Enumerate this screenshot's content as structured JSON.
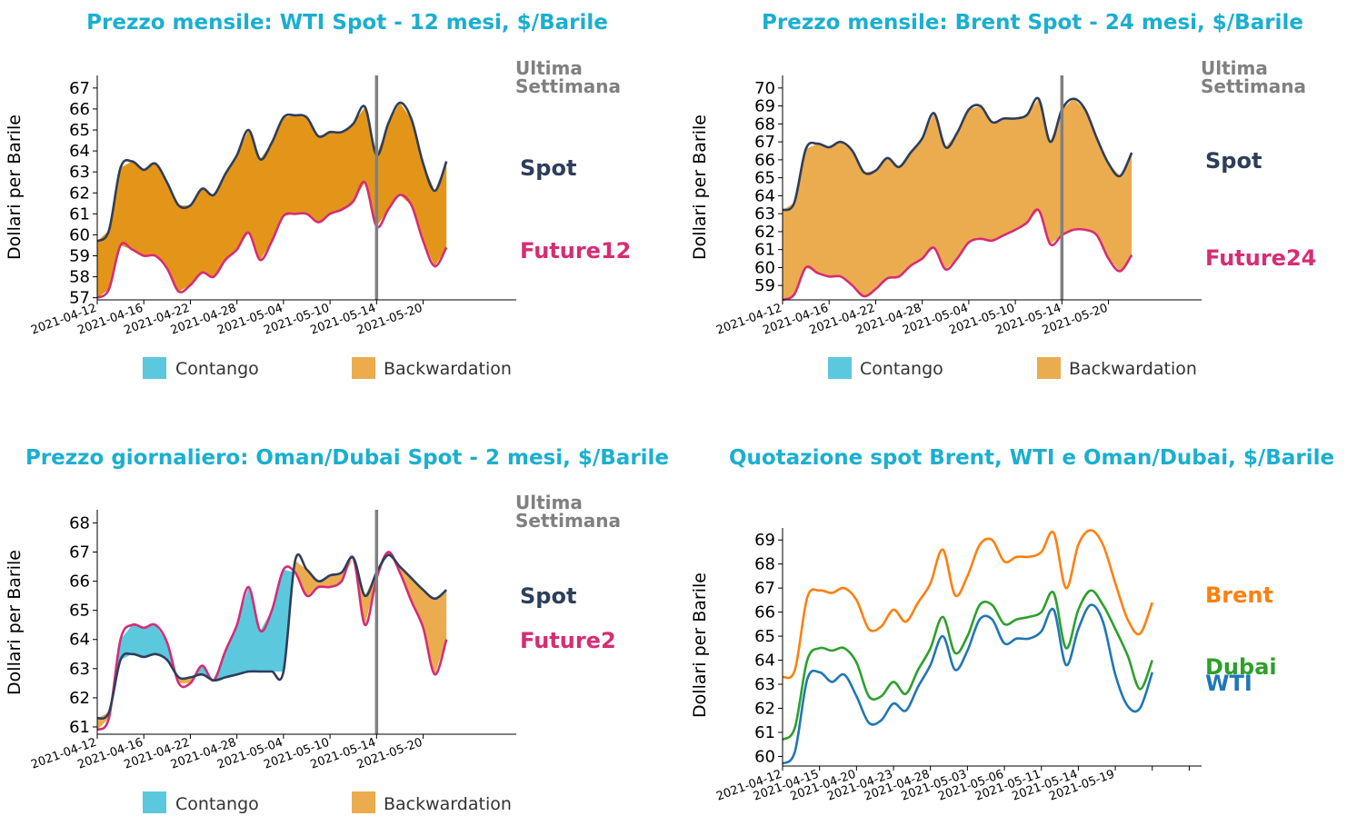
{
  "colors": {
    "title": "#1aafd0",
    "spot": "#2d3e5c",
    "future": "#d62d74",
    "backwardation_dark": "#e3951a",
    "backwardation_light": "#ebac4f",
    "contango": "#5bc8de",
    "marker": "#808080",
    "brent": "#ff7f0e",
    "dubai": "#2ca02c",
    "wti": "#1f77b4"
  },
  "chart_data": [
    {
      "id": "wti",
      "type": "area",
      "title": "Prezzo mensile: WTI Spot - 12 mesi, $/Barile",
      "ylabel": "Dollari per Barile",
      "ylim": [
        56.9,
        67.6
      ],
      "yticks": [
        57,
        58,
        59,
        60,
        61,
        62,
        63,
        64,
        65,
        66,
        67
      ],
      "xlim": [
        0,
        36
      ],
      "xticks": [
        0,
        4,
        8,
        12,
        16,
        20,
        24,
        28
      ],
      "xtick_labels": [
        "2021-04-12",
        "2021-04-16",
        "2021-04-22",
        "2021-04-28",
        "2021-05-04",
        "2021-05-10",
        "2021-05-14",
        "2021-05-20"
      ],
      "marker_x": 24,
      "marker_label_1": "Ultima",
      "marker_label_2": "Settimana",
      "spot_label": "Spot",
      "future_label": "Future12",
      "legend_contango": "Contango",
      "legend_backwardation": "Backwardation",
      "series": [
        {
          "name": "Spot",
          "values": [
            59.7,
            60.2,
            63.2,
            63.5,
            63.1,
            63.4,
            62.5,
            61.4,
            61.4,
            62.2,
            61.9,
            62.9,
            63.8,
            65.0,
            63.6,
            64.4,
            65.6,
            65.7,
            65.6,
            64.7,
            64.9,
            64.9,
            65.3,
            66.1,
            63.8,
            65.3,
            66.3,
            65.5,
            63.4,
            62.1,
            63.5
          ]
        },
        {
          "name": "Future12",
          "values": [
            57.0,
            57.4,
            59.5,
            59.3,
            59.0,
            59.0,
            58.4,
            57.3,
            57.6,
            58.2,
            58.0,
            58.8,
            59.3,
            60.1,
            58.8,
            59.7,
            60.9,
            61.0,
            61.0,
            60.6,
            61.0,
            61.2,
            61.6,
            62.5,
            60.4,
            61.2,
            61.9,
            61.4,
            59.7,
            58.5,
            59.4
          ]
        }
      ]
    },
    {
      "id": "brent",
      "type": "area",
      "title": "Prezzo mensile: Brent Spot - 24 mesi, $/Barile",
      "ylabel": "Dollari per Barile",
      "ylim": [
        58.2,
        70.7
      ],
      "yticks": [
        59,
        60,
        61,
        62,
        63,
        64,
        65,
        66,
        67,
        68,
        69,
        70
      ],
      "xlim": [
        0,
        36
      ],
      "xticks": [
        0,
        4,
        8,
        12,
        16,
        20,
        24,
        28
      ],
      "xtick_labels": [
        "2021-04-12",
        "2021-04-16",
        "2021-04-22",
        "2021-04-28",
        "2021-05-04",
        "2021-05-10",
        "2021-05-14",
        "2021-05-20"
      ],
      "marker_x": 24,
      "marker_label_1": "Ultima",
      "marker_label_2": "Settimana",
      "spot_label": "Spot",
      "future_label": "Future24",
      "legend_contango": "Contango",
      "legend_backwardation": "Backwardation",
      "series": [
        {
          "name": "Spot",
          "values": [
            63.2,
            63.6,
            66.6,
            66.9,
            66.7,
            67.0,
            66.5,
            65.3,
            65.4,
            66.1,
            65.6,
            66.4,
            67.2,
            68.6,
            66.7,
            67.5,
            68.8,
            69.0,
            68.1,
            68.3,
            68.3,
            68.5,
            69.4,
            67.0,
            68.8,
            69.4,
            68.8,
            67.2,
            65.8,
            65.1,
            66.4
          ]
        },
        {
          "name": "Future24",
          "values": [
            58.2,
            58.5,
            60.0,
            59.7,
            59.5,
            59.5,
            59.0,
            58.4,
            58.8,
            59.4,
            59.5,
            60.1,
            60.5,
            61.1,
            59.9,
            60.5,
            61.4,
            61.6,
            61.5,
            61.8,
            62.1,
            62.5,
            63.2,
            61.3,
            61.8,
            62.1,
            62.1,
            61.8,
            60.5,
            59.8,
            60.7
          ]
        }
      ]
    },
    {
      "id": "dubai",
      "type": "area",
      "title": "Prezzo giornaliero: Oman/Dubai Spot - 2 mesi, $/Barile",
      "ylabel": "Dollari per Barile",
      "ylim": [
        60.75,
        68.45
      ],
      "yticks": [
        61,
        62,
        63,
        64,
        65,
        66,
        67,
        68
      ],
      "xlim": [
        0,
        36
      ],
      "xticks": [
        0,
        4,
        8,
        12,
        16,
        20,
        24,
        28
      ],
      "xtick_labels": [
        "2021-04-12",
        "2021-04-16",
        "2021-04-22",
        "2021-04-28",
        "2021-05-04",
        "2021-05-10",
        "2021-05-14",
        "2021-05-20"
      ],
      "marker_x": 24,
      "marker_label_1": "Ultima",
      "marker_label_2": "Settimana",
      "spot_label": "Spot",
      "future_label": "Future2",
      "legend_contango": "Contango",
      "legend_backwardation": "Backwardation",
      "series": [
        {
          "name": "Spot",
          "values": [
            61.3,
            61.5,
            63.3,
            63.5,
            63.4,
            63.5,
            63.3,
            62.7,
            62.7,
            62.8,
            62.6,
            62.7,
            62.8,
            62.9,
            62.9,
            62.9,
            62.9,
            66.7,
            66.4,
            66.0,
            66.2,
            66.3,
            66.8,
            65.5,
            66.3,
            66.9,
            66.5,
            66.1,
            65.7,
            65.4,
            65.7
          ]
        },
        {
          "name": "Future2",
          "values": [
            60.9,
            61.3,
            64.0,
            64.5,
            64.4,
            64.5,
            63.9,
            62.5,
            62.5,
            63.1,
            62.6,
            63.6,
            64.5,
            65.8,
            64.3,
            65.0,
            66.4,
            66.3,
            65.5,
            65.8,
            65.8,
            66.0,
            66.8,
            64.5,
            66.1,
            67.0,
            66.3,
            65.3,
            64.4,
            62.8,
            64.0
          ]
        }
      ]
    },
    {
      "id": "spot",
      "type": "line",
      "title": "Quotazione spot Brent, WTI e Oman/Dubai, $/Barile",
      "ylabel": "Dollari per Barile",
      "ylim": [
        59.6,
        69.5
      ],
      "yticks": [
        60,
        61,
        62,
        63,
        64,
        65,
        66,
        67,
        68,
        69
      ],
      "xlim": [
        0,
        34
      ],
      "xticks": [
        0,
        3,
        6,
        9,
        12,
        15,
        18,
        21,
        24,
        27,
        30,
        33
      ],
      "xtick_labels": [
        "2021-04-12",
        "2021-04-15",
        "2021-04-20",
        "2021-04-23",
        "2021-04-28",
        "2021-05-03",
        "2021-05-06",
        "2021-05-11",
        "2021-05-14",
        "2021-05-19",
        "",
        ""
      ],
      "series": [
        {
          "name": "Brent",
          "label": "Brent",
          "values": [
            63.3,
            63.6,
            66.6,
            66.9,
            66.8,
            67.0,
            66.5,
            65.3,
            65.4,
            66.1,
            65.6,
            66.4,
            67.2,
            68.6,
            66.7,
            67.5,
            68.8,
            69.0,
            68.1,
            68.3,
            68.3,
            68.5,
            69.3,
            67.0,
            68.8,
            69.4,
            68.8,
            67.2,
            65.7,
            65.1,
            66.4
          ]
        },
        {
          "name": "Dubai",
          "label": "Dubai",
          "values": [
            60.7,
            61.2,
            64.0,
            64.5,
            64.4,
            64.5,
            63.9,
            62.5,
            62.5,
            63.1,
            62.6,
            63.6,
            64.5,
            65.8,
            64.3,
            65.0,
            66.3,
            66.3,
            65.5,
            65.7,
            65.8,
            66.0,
            66.8,
            64.5,
            66.1,
            66.9,
            66.3,
            65.3,
            64.2,
            62.8,
            64.0
          ]
        },
        {
          "name": "WTI",
          "label": "WTI",
          "values": [
            59.7,
            60.2,
            63.2,
            63.5,
            63.1,
            63.4,
            62.5,
            61.4,
            61.5,
            62.2,
            61.9,
            62.9,
            63.8,
            65.0,
            63.6,
            64.4,
            65.7,
            65.7,
            64.7,
            64.9,
            64.9,
            65.2,
            66.1,
            63.8,
            65.3,
            66.3,
            65.6,
            63.4,
            62.1,
            62.0,
            63.5
          ]
        }
      ]
    }
  ]
}
